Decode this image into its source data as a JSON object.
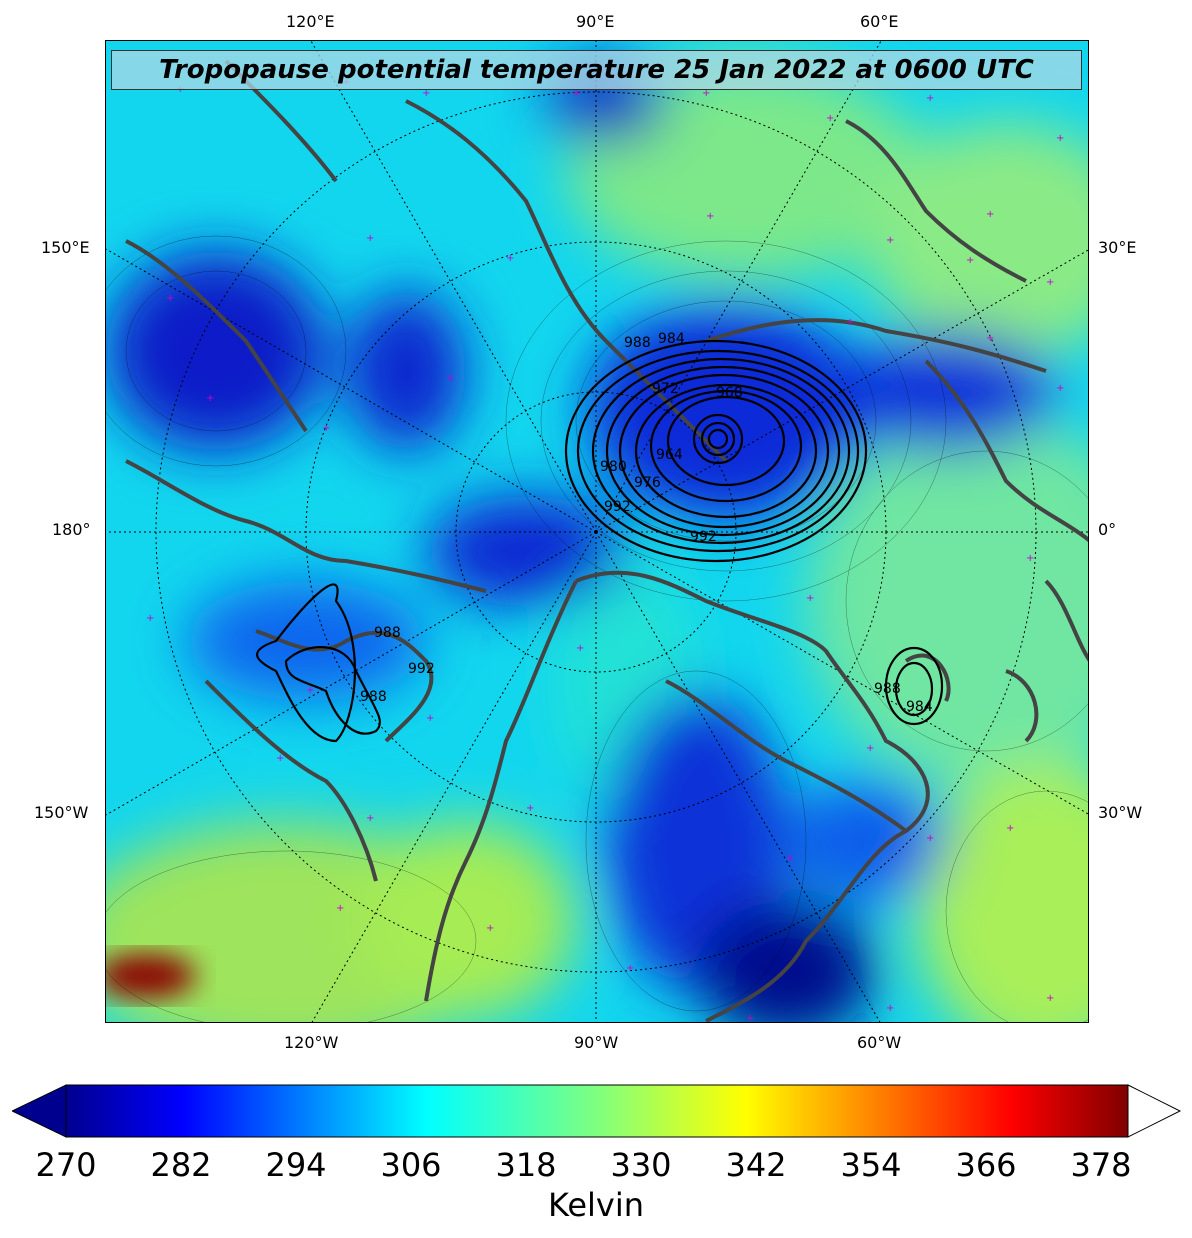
{
  "title": "Tropopause potential temperature 25 Jan 2022 at 0600 UTC",
  "map": {
    "projection": "north-polar-stereographic",
    "field": "tropopause potential temperature",
    "lon_labels_top": [
      "120°E",
      "90°E",
      "60°E"
    ],
    "lon_labels_bottom": [
      "120°W",
      "90°W",
      "60°W"
    ],
    "lat_labels_left": [
      "150°E",
      "180°",
      "150°W"
    ],
    "lat_labels_right": [
      "30°E",
      "0°",
      "30°W"
    ],
    "pressure_contours": [
      {
        "system": "north-atlantic-low",
        "labels": [
          "988",
          "984",
          "972",
          "968",
          "964",
          "980",
          "976",
          "992",
          "992"
        ]
      },
      {
        "system": "bering-low",
        "labels": [
          "988",
          "992",
          "988"
        ]
      },
      {
        "system": "labrador-sea-low",
        "labels": [
          "988",
          "984"
        ]
      }
    ],
    "colors": {
      "coastline": "#444444",
      "contour": "#000000",
      "marker": "#cc00cc"
    }
  },
  "colorbar": {
    "ticks": [
      "270",
      "282",
      "294",
      "306",
      "318",
      "330",
      "342",
      "354",
      "366",
      "378"
    ],
    "label": "Kelvin",
    "min": 270,
    "max": 381,
    "colormap": "jet",
    "extend": "both"
  }
}
